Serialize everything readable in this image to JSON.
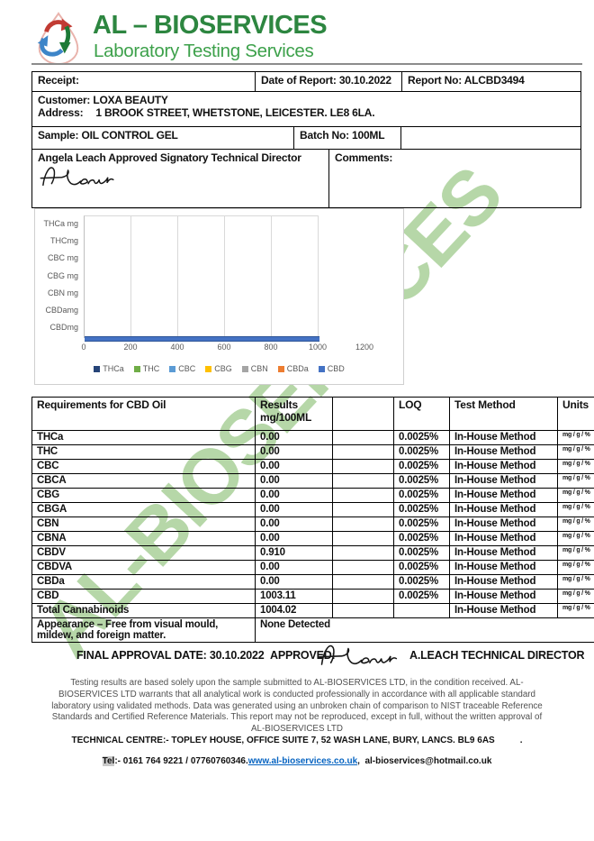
{
  "header": {
    "title": "AL – BIOSERVICES",
    "subtitle": "Laboratory Testing Services",
    "logo_icon": "droplet-recycle-logo",
    "title_color": "#2d8640",
    "subtitle_color": "#3da14b"
  },
  "watermark": {
    "text": "AL-BIOSERVICES",
    "color": "#b6d7a8"
  },
  "info_table": {
    "receipt_label": "Receipt:",
    "report_date_label": "Date of Report:",
    "report_date_value": "30.10.2022",
    "report_no_label": "Report No:",
    "report_no_value": "ALCBD3494",
    "customer_label": "Customer:",
    "customer_value": "LOXA BEAUTY",
    "address_label": "Address:",
    "address_value": "1 BROOK STREET, WHETSTONE, LEICESTER. LE8 6LA.",
    "sample_label": "Sample:",
    "sample_value": "OIL CONTROL GEL",
    "batch_label": "Batch No:",
    "batch_value": "100ML",
    "signatory": "Angela Leach Approved Signatory Technical Director",
    "comments_label": "Comments:"
  },
  "chart_data": {
    "type": "bar",
    "orientation": "horizontal",
    "title": "",
    "categories": [
      "THCa mg",
      "THCmg",
      "CBC mg",
      "CBG mg",
      "CBN mg",
      "CBDamg",
      "CBDmg"
    ],
    "series": [
      {
        "name": "THCa",
        "color": "#264478",
        "values": [
          0,
          0,
          0,
          0,
          0,
          0,
          0
        ]
      },
      {
        "name": "THC",
        "color": "#70ad47",
        "values": [
          0,
          0,
          0,
          0,
          0,
          0,
          0
        ]
      },
      {
        "name": "CBC",
        "color": "#5b9bd5",
        "values": [
          0,
          0,
          0,
          0,
          0,
          0,
          0
        ]
      },
      {
        "name": "CBG",
        "color": "#ffc000",
        "values": [
          0,
          0,
          0,
          0,
          0,
          0,
          0
        ]
      },
      {
        "name": "CBN",
        "color": "#a5a5a5",
        "values": [
          0,
          0,
          0,
          0,
          0,
          0,
          0
        ]
      },
      {
        "name": "CBDa",
        "color": "#ed7d31",
        "values": [
          0,
          0,
          0,
          0,
          0,
          0,
          0
        ]
      },
      {
        "name": "CBD",
        "color": "#4472c4",
        "values": [
          0,
          0,
          0,
          0,
          0,
          0,
          1003.11
        ]
      }
    ],
    "x_ticks": [
      0,
      200,
      400,
      600,
      800,
      1000,
      1200
    ],
    "xlim": [
      0,
      1000
    ],
    "grid": true,
    "legend_position": "bottom",
    "bar_edge_color": "#2f5597"
  },
  "results_table": {
    "columns": [
      {
        "label": "Requirements for CBD Oil"
      },
      {
        "label": "Results",
        "sub": "mg/100ML"
      },
      {
        "label": ""
      },
      {
        "label": "LOQ"
      },
      {
        "label": "Test Method"
      },
      {
        "label": "Units"
      }
    ],
    "rows": [
      [
        "THCa",
        "0.00",
        "",
        "0.0025%",
        "In-House Method",
        "mg / g / %"
      ],
      [
        "THC",
        "0.00",
        "",
        "0.0025%",
        "In-House Method",
        "mg / g / %"
      ],
      [
        "CBC",
        "0.00",
        "",
        "0.0025%",
        "In-House Method",
        "mg / g / %"
      ],
      [
        "CBCA",
        "0.00",
        "",
        "0.0025%",
        "In-House Method",
        "mg / g / %"
      ],
      [
        "CBG",
        "0.00",
        "",
        "0.0025%",
        "In-House Method",
        "mg / g / %"
      ],
      [
        "CBGA",
        "0.00",
        "",
        "0.0025%",
        "In-House Method",
        "mg / g / %"
      ],
      [
        "CBN",
        "0.00",
        "",
        "0.0025%",
        "In-House Method",
        "mg / g / %"
      ],
      [
        "CBNA",
        "0.00",
        "",
        "0.0025%",
        "In-House Method",
        "mg / g / %"
      ],
      [
        "CBDV",
        "0.910",
        "",
        "0.0025%",
        "In-House Method",
        "mg / g / %"
      ],
      [
        "CBDVA",
        "0.00",
        "",
        "0.0025%",
        "In-House Method",
        "mg / g / %"
      ],
      [
        "CBDa",
        "0.00",
        "",
        "0.0025%",
        "In-House Method",
        "mg / g / %"
      ],
      [
        "CBD",
        "1003.11",
        "",
        "0.0025%",
        "In-House Method",
        "mg / g / %"
      ],
      [
        "Total Cannabinoids",
        "1004.02",
        "",
        "",
        "In-House Method",
        "mg / g / %"
      ]
    ],
    "appearance_label": "Appearance – Free from visual mould, mildew, and foreign matter.",
    "appearance_result": "None Detected"
  },
  "approval": {
    "final_label": "FINAL APPROVAL DATE: 30.10.2022",
    "approved_label": "APPROVED:",
    "approver": "A.LEACH TECHNICAL DIRECTOR"
  },
  "disclaimer": "Testing results are based solely upon the sample submitted to AL-BIOSERVICES LTD, in the condition received. AL-BIOSERVICES LTD warrants that all analytical work is conducted professionally in accordance with all applicable standard laboratory using validated methods. Data was generated using an unbroken chain of comparison to NIST traceable Reference Standards and Certified Reference Materials. This report may not be reproduced, except in full, without the written approval of AL-BIOSERVICES LTD",
  "footer": {
    "line1": "TECHNICAL CENTRE:- TOPLEY HOUSE, OFFICE SUITE 7, 52 WASH LANE, BURY, LANCS. BL9 6AS",
    "line1_trailing_dot": ".",
    "tel_label": "Tel",
    "tel_rest": ":- 0161 764 9221 / 07760760346.",
    "link": "www.al-bioservices.co.uk",
    "link_separator": ",",
    "email": "al-bioservices@hotmail.co.uk"
  }
}
